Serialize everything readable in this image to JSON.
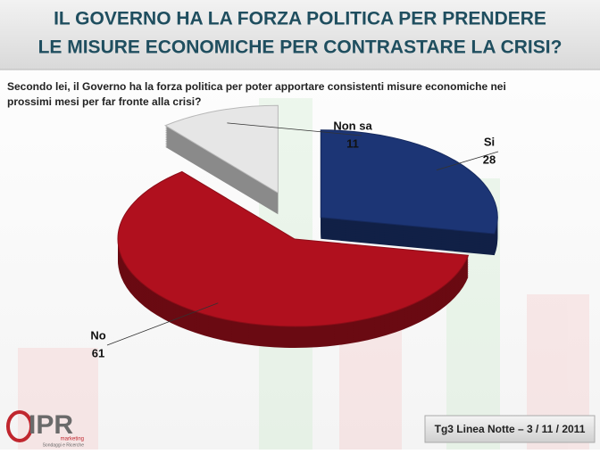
{
  "chart_data": {
    "type": "pie",
    "title": [
      "IL GOVERNO HA LA FORZA POLITICA PER PRENDERE",
      "LE MISURE ECONOMICHE PER CONTRASTARE LA CRISI?"
    ],
    "subtitle": [
      "Secondo lei, il Governo ha la forza politica per poter apportare consistenti misure economiche nei",
      "prossimi mesi per far fronte alla crisi?"
    ],
    "categories": [
      "Si",
      "No",
      "Non sa"
    ],
    "values": [
      28,
      61,
      11
    ],
    "colors": [
      "#1c3575",
      "#b0101e",
      "#e6e6e6"
    ]
  },
  "footer": "Tg3 Linea Notte – 3 / 11 / 2011",
  "logo": {
    "name": "IPR",
    "line1": "marketing",
    "line2": "Sondaggi e Ricerche"
  }
}
